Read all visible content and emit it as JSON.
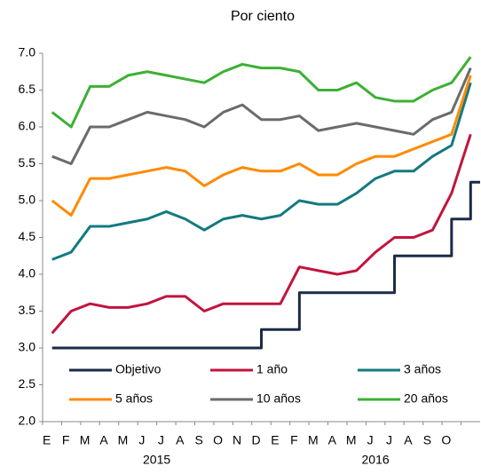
{
  "chart_data": {
    "type": "line",
    "title": "Por ciento",
    "categories": [
      "E",
      "F",
      "M",
      "A",
      "M",
      "J",
      "J",
      "A",
      "S",
      "O",
      "N",
      "D",
      "E",
      "F",
      "M",
      "A",
      "M",
      "J",
      "J",
      "A",
      "S",
      "O",
      null
    ],
    "year_labels": [
      "2015",
      "2016"
    ],
    "ylim": [
      2.0,
      7.0
    ],
    "yticks": [
      {
        "value": 2.0,
        "label": "2.0"
      },
      {
        "value": 2.5,
        "label": "2.5"
      },
      {
        "value": 3.0,
        "label": "3.0"
      },
      {
        "value": 3.5,
        "label": "3.5"
      },
      {
        "value": 4.0,
        "label": "4.0"
      },
      {
        "value": 4.5,
        "label": "4.5"
      },
      {
        "value": 5.0,
        "label": "5.0"
      },
      {
        "value": 5.5,
        "label": "5.5"
      },
      {
        "value": 6.0,
        "label": "6.0"
      },
      {
        "value": 6.5,
        "label": "6.5"
      },
      {
        "value": 7.0,
        "label": "7.0"
      }
    ],
    "grid": false,
    "legend": "lower center",
    "series": [
      {
        "name": "Objetivo",
        "color": "#1b2a47",
        "step": true,
        "values": [
          3,
          3,
          3,
          3,
          3,
          3,
          3,
          3,
          3,
          3,
          3,
          3.25,
          3.25,
          3.75,
          3.75,
          3.75,
          3.75,
          3.75,
          4.25,
          4.25,
          4.25,
          4.75,
          5.25
        ]
      },
      {
        "name": "1 año",
        "color": "#c2143e",
        "values": [
          3.2,
          3.5,
          3.6,
          3.55,
          3.55,
          3.6,
          3.7,
          3.7,
          3.5,
          3.6,
          3.6,
          3.6,
          3.6,
          4.1,
          4.05,
          4.0,
          4.05,
          4.3,
          4.5,
          4.5,
          4.6,
          5.1,
          5.9
        ]
      },
      {
        "name": "3 años",
        "color": "#137a80",
        "values": [
          4.2,
          4.3,
          4.65,
          4.65,
          4.7,
          4.75,
          4.85,
          4.75,
          4.6,
          4.75,
          4.8,
          4.75,
          4.8,
          5.0,
          4.95,
          4.95,
          5.1,
          5.3,
          5.4,
          5.4,
          5.6,
          5.75,
          6.6
        ]
      },
      {
        "name": "5 años",
        "color": "#ff8a00",
        "values": [
          5.0,
          4.8,
          5.3,
          5.3,
          5.35,
          5.4,
          5.45,
          5.4,
          5.2,
          5.35,
          5.45,
          5.4,
          5.4,
          5.5,
          5.35,
          5.35,
          5.5,
          5.6,
          5.6,
          5.7,
          5.8,
          5.9,
          6.7
        ]
      },
      {
        "name": "10 años",
        "color": "#6b6b6b",
        "values": [
          5.6,
          5.5,
          6.0,
          6.0,
          6.1,
          6.2,
          6.15,
          6.1,
          6.0,
          6.2,
          6.3,
          6.1,
          6.1,
          6.15,
          5.95,
          6.0,
          6.05,
          6.0,
          5.95,
          5.9,
          6.1,
          6.2,
          6.8
        ]
      },
      {
        "name": "20 años",
        "color": "#3cb034",
        "values": [
          6.2,
          6.0,
          6.55,
          6.55,
          6.7,
          6.75,
          6.7,
          6.65,
          6.6,
          6.75,
          6.85,
          6.8,
          6.8,
          6.75,
          6.5,
          6.5,
          6.6,
          6.4,
          6.35,
          6.35,
          6.5,
          6.6,
          6.95
        ]
      }
    ]
  }
}
